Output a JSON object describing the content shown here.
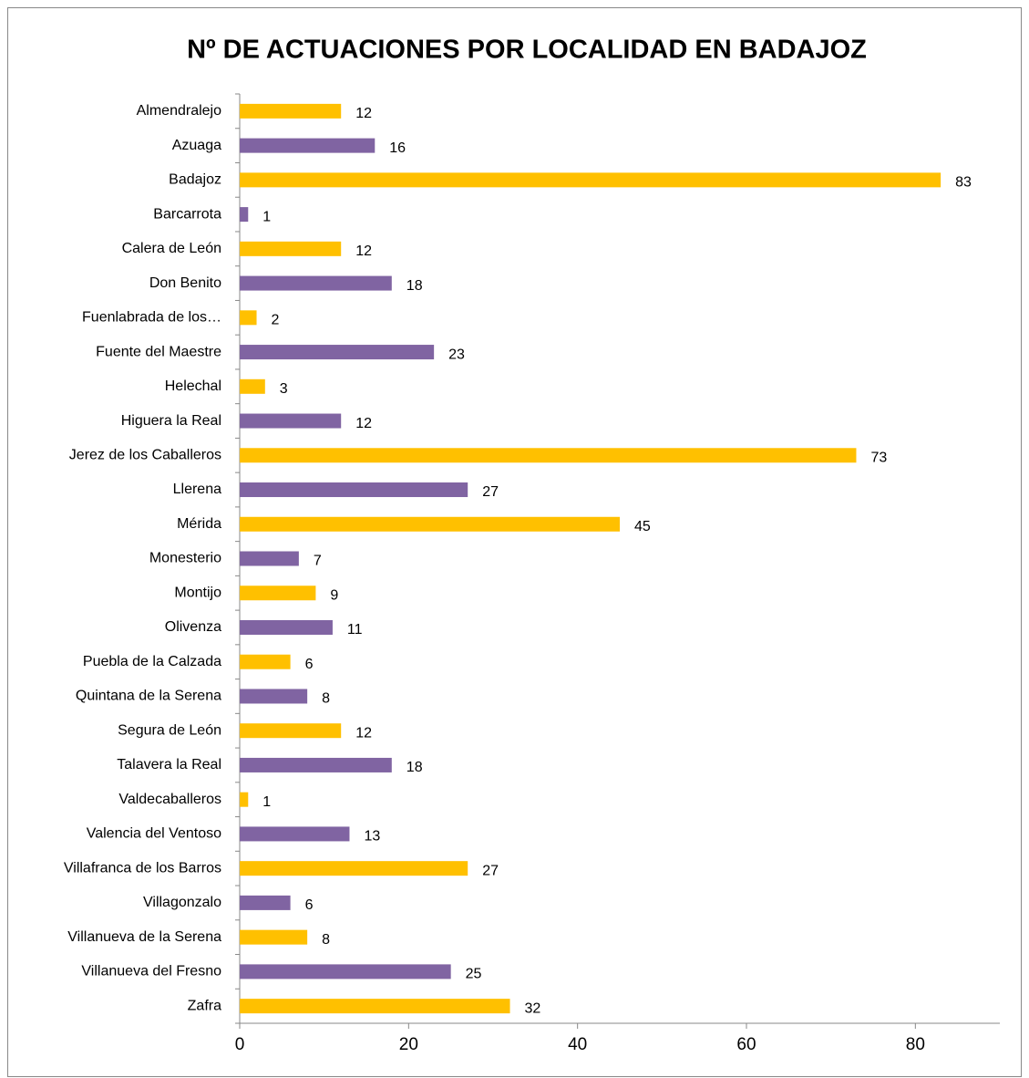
{
  "chart_data": {
    "type": "barh",
    "title": "Nº DE ACTUACIONES POR LOCALIDAD EN BADAJOZ",
    "categories": [
      "Almendralejo",
      "Azuaga",
      "Badajoz",
      "Barcarrota",
      "Calera de León",
      "Don Benito",
      "Fuenlabrada de los…",
      "Fuente del Maestre",
      "Helechal",
      "Higuera la Real",
      "Jerez de los Caballeros",
      "Llerena",
      "Mérida",
      "Monesterio",
      "Montijo",
      "Olivenza",
      "Puebla de la Calzada",
      "Quintana de la Serena",
      "Segura de León",
      "Talavera la Real",
      "Valdecaballeros",
      "Valencia del Ventoso",
      "Villafranca de los Barros",
      "Villagonzalo",
      "Villanueva de la Serena",
      "Villanueva del Fresno",
      "Zafra"
    ],
    "values": [
      12,
      16,
      83,
      1,
      12,
      18,
      2,
      23,
      3,
      12,
      73,
      27,
      45,
      7,
      9,
      11,
      6,
      8,
      12,
      18,
      1,
      13,
      27,
      6,
      8,
      25,
      32
    ],
    "colors": [
      "#ffc000",
      "#8064a2",
      "#ffc000",
      "#8064a2",
      "#ffc000",
      "#8064a2",
      "#ffc000",
      "#8064a2",
      "#ffc000",
      "#8064a2",
      "#ffc000",
      "#8064a2",
      "#ffc000",
      "#8064a2",
      "#ffc000",
      "#8064a2",
      "#ffc000",
      "#8064a2",
      "#ffc000",
      "#8064a2",
      "#ffc000",
      "#8064a2",
      "#ffc000",
      "#8064a2",
      "#ffc000",
      "#8064a2",
      "#ffc000"
    ],
    "xlim": [
      0,
      90
    ],
    "xticks": [
      0,
      20,
      40,
      60,
      80
    ],
    "grid": false
  }
}
